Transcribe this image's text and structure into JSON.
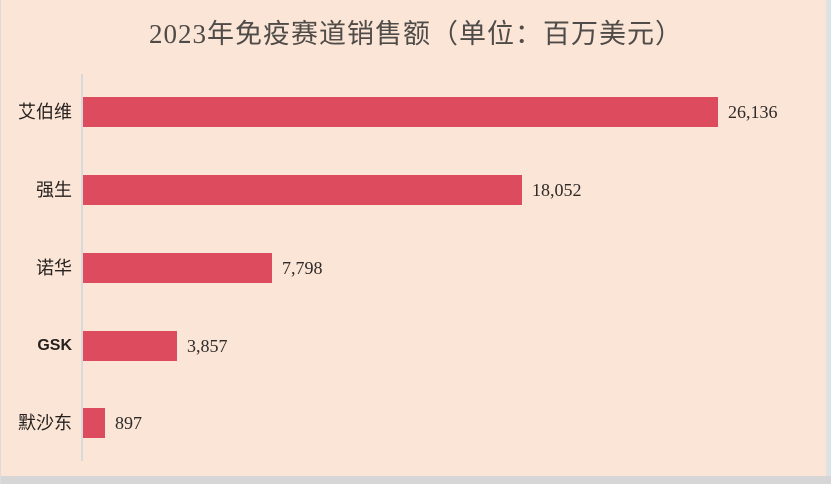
{
  "window": {
    "background": "#fbe5d6",
    "bottom_strip_color": "#d6d6d6",
    "right_strip_color": "#dfe2e4"
  },
  "chart_data": {
    "type": "bar",
    "orientation": "horizontal",
    "title": "2023年免疫赛道销售额（单位：百万美元）",
    "categories": [
      "艾伯维",
      "强生",
      "诺华",
      "GSK",
      "默沙东"
    ],
    "values": [
      26136,
      18052,
      7798,
      3857,
      897
    ],
    "value_labels": [
      "26,136",
      "18,052",
      "7,798",
      "3,857",
      "897"
    ],
    "bar_color": "#dd4b5f",
    "axis_color": "#d9d9d9",
    "title_color": "#4f4b48",
    "text_color": "#2e2a28",
    "xlim": [
      0,
      27500
    ],
    "grid": false,
    "legend": false,
    "value_labels_position": "end-of-bar"
  }
}
